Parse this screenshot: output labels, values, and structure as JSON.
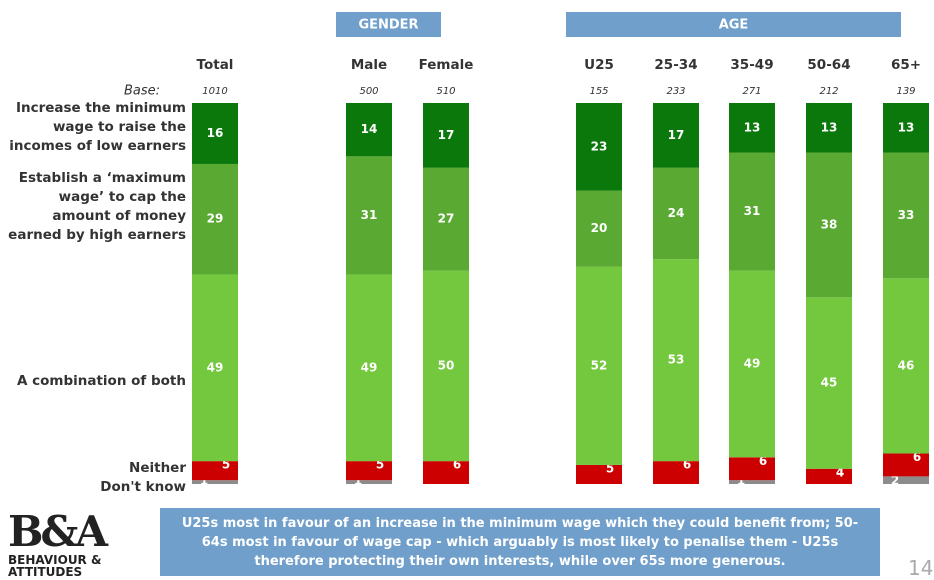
{
  "chart_data": {
    "type": "stacked_bar",
    "groups": [
      {
        "label": "GENDER",
        "from": 1,
        "to": 2
      },
      {
        "label": "AGE",
        "from": 3,
        "to": 7
      }
    ],
    "categories": [
      "Total",
      "Male",
      "Female",
      "U25",
      "25-34",
      "35-49",
      "50-64",
      "65+"
    ],
    "base_label": "Base:",
    "bases": [
      1010,
      500,
      510,
      155,
      233,
      271,
      212,
      139
    ],
    "ylim": [
      0,
      100
    ],
    "series": [
      {
        "name": "Don't know",
        "color": "#8c8c8c",
        "values": [
          1,
          1,
          0,
          0,
          0,
          1,
          0,
          2
        ]
      },
      {
        "name": "Neither",
        "color": "#cc0000",
        "values": [
          5,
          5,
          6,
          5,
          6,
          6,
          4,
          6
        ]
      },
      {
        "name": "A combination of both",
        "color": "#74c83e",
        "values": [
          49,
          49,
          50,
          52,
          53,
          49,
          45,
          46
        ]
      },
      {
        "name": "Establish a ‘maximum wage’ to cap the amount of money earned by high earners",
        "color": "#5aa932",
        "values": [
          29,
          31,
          27,
          20,
          24,
          31,
          38,
          33
        ]
      },
      {
        "name": "Increase the minimum wage to raise the incomes of low earners",
        "color": "#0b780b",
        "values": [
          16,
          14,
          17,
          23,
          17,
          13,
          13,
          13
        ]
      }
    ],
    "footer": "U25s most in favour of an increase in the minimum wage which they could benefit from; 50-64s most in favour of wage cap - which arguably is most likely to penalise them - U25s therefore protecting their own interests, while over 65s more generous.",
    "logo": {
      "mark": "B&A",
      "name": "BEHAVIOUR & ATTITUDES"
    },
    "page_number": "14"
  }
}
